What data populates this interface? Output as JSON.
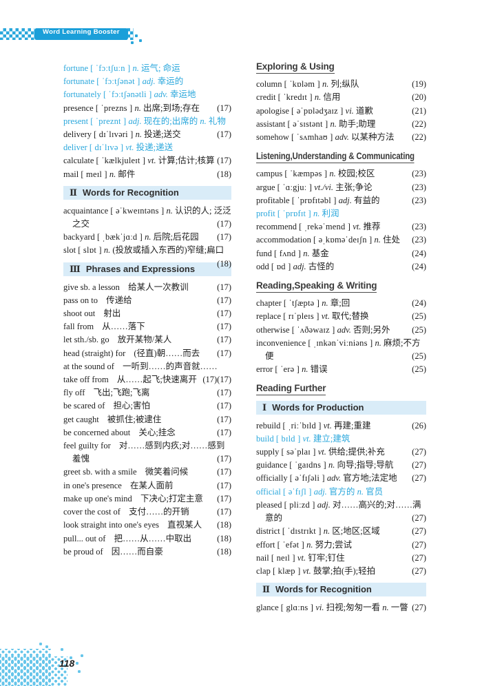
{
  "page": {
    "header_badge": "Word Learning Booster",
    "page_number": "118"
  },
  "colors": {
    "accent_blue": "#2aa7dc",
    "badge_blue": "#1b9fd9",
    "section_bar_bg": "#d9ecf8",
    "text_dark": "#1e1e1e"
  },
  "left_column": [
    {
      "kind": "entry",
      "blue": true,
      "head": "fortune",
      "phon": "ˈfɔːtʃuːn",
      "body": [
        {
          "pos": "n.",
          "zh": "运气; 命运"
        }
      ]
    },
    {
      "kind": "entry",
      "blue": true,
      "head": "fortunate",
      "phon": "ˈfɔːtʃənət",
      "body": [
        {
          "pos": "adj.",
          "zh": "幸运的"
        }
      ]
    },
    {
      "kind": "entry",
      "blue": true,
      "head": "fortunately",
      "phon": "ˈfɔːtʃənətli",
      "body": [
        {
          "pos": "adv.",
          "zh": "幸运地"
        }
      ]
    },
    {
      "kind": "entry",
      "head": "presence",
      "phon": "ˈprezns",
      "body": [
        {
          "pos": "n.",
          "zh": "出席;到场;存在"
        }
      ],
      "page": "(17)"
    },
    {
      "kind": "entry",
      "blue": true,
      "head": "present",
      "phon": "ˈpreznt",
      "body": [
        {
          "pos": "adj.",
          "zh": "现在的;出席的"
        },
        {
          "pos": "n.",
          "zh": "礼物"
        }
      ]
    },
    {
      "kind": "entry",
      "head": "delivery",
      "phon": "dɪˈlɪvəri",
      "body": [
        {
          "pos": "n.",
          "zh": "投递;送交"
        }
      ],
      "page": "(17)"
    },
    {
      "kind": "entry",
      "blue": true,
      "head": "deliver",
      "phon": "dɪˈlɪvə",
      "body": [
        {
          "pos": "vt.",
          "zh": "投递;递送"
        }
      ]
    },
    {
      "kind": "entry",
      "head": "calculate",
      "phon": "ˈkælkjuleɪt",
      "body": [
        {
          "pos": "vt.",
          "zh": "计算;估计;核算"
        }
      ],
      "page": "(17)"
    },
    {
      "kind": "entry",
      "head": "mail",
      "phon": "meɪl",
      "body": [
        {
          "pos": "n.",
          "zh": "邮件"
        }
      ],
      "page": "(18)"
    },
    {
      "kind": "bar",
      "num": "Ⅱ",
      "label": "Words for Recognition"
    },
    {
      "kind": "entry",
      "head": "acquaintance",
      "phon": "əˈkweɪntəns",
      "body": [
        {
          "pos": "n.",
          "zh": "认识的人; 泛泛之交"
        }
      ],
      "page": "(17)"
    },
    {
      "kind": "entry",
      "head": "backyard",
      "phon": "ˌbækˈjɑːd",
      "body": [
        {
          "pos": "n.",
          "zh": "后院;后花园"
        }
      ],
      "page": "(17)"
    },
    {
      "kind": "entry",
      "head": "slot",
      "phon": "slɒt",
      "body": [
        {
          "pos": "n.",
          "zh": "(投放或插入东西的)窄缝;扁口"
        }
      ],
      "page": "(18)"
    },
    {
      "kind": "bar",
      "num": "Ⅲ",
      "label": "Phrases and Expressions"
    },
    {
      "kind": "entry",
      "head": "give sb. a lesson",
      "body": [
        {
          "zh": "给某人一次教训"
        }
      ],
      "page": "(17)"
    },
    {
      "kind": "entry",
      "head": "pass on to",
      "body": [
        {
          "zh": "传递给"
        }
      ],
      "page": "(17)"
    },
    {
      "kind": "entry",
      "head": "shoot out",
      "body": [
        {
          "zh": "射出"
        }
      ],
      "page": "(17)"
    },
    {
      "kind": "entry",
      "head": "fall from",
      "body": [
        {
          "zh": "从……落下"
        }
      ],
      "page": "(17)"
    },
    {
      "kind": "entry",
      "head": "let sth./sb. go",
      "body": [
        {
          "zh": "放开某物/某人"
        }
      ],
      "page": "(17)"
    },
    {
      "kind": "entry",
      "head": "head (straight) for",
      "body": [
        {
          "zh": "(径直)朝……而去"
        }
      ],
      "page": "(17)"
    },
    {
      "kind": "entry",
      "head": "at the sound of",
      "body": [
        {
          "zh": "一听到……的声音就……"
        }
      ],
      "page": "(17)"
    },
    {
      "kind": "entry",
      "head": "take off from",
      "body": [
        {
          "zh": "从……起飞;快速离开"
        }
      ],
      "page": "(17)"
    },
    {
      "kind": "entry",
      "head": "fly off",
      "body": [
        {
          "zh": "飞出;飞跑;飞离"
        }
      ],
      "page": "(17)"
    },
    {
      "kind": "entry",
      "head": "be scared of",
      "body": [
        {
          "zh": "担心;害怕"
        }
      ],
      "page": "(17)"
    },
    {
      "kind": "entry",
      "head": "get caught",
      "body": [
        {
          "zh": "被抓住;被逮住"
        }
      ],
      "page": "(17)"
    },
    {
      "kind": "entry",
      "head": "be concerned about",
      "body": [
        {
          "zh": "关心;挂念"
        }
      ],
      "page": "(17)"
    },
    {
      "kind": "entry",
      "head": "feel guilty for",
      "body": [
        {
          "zh": "对……感到内疚;对……感到羞愧"
        }
      ],
      "page": "(17)"
    },
    {
      "kind": "entry",
      "head": "greet sb. with a smile",
      "body": [
        {
          "zh": "微笑着问候"
        }
      ],
      "page": "(17)"
    },
    {
      "kind": "entry",
      "head": "in one's presence",
      "body": [
        {
          "zh": "在某人面前"
        }
      ],
      "page": "(17)"
    },
    {
      "kind": "entry",
      "head": "make up one's mind",
      "body": [
        {
          "zh": "下决心;打定主意"
        }
      ],
      "page": "(17)"
    },
    {
      "kind": "entry",
      "head": "cover the cost of",
      "body": [
        {
          "zh": "支付……的开销"
        }
      ],
      "page": "(17)"
    },
    {
      "kind": "entry",
      "head": "look straight into one's eyes",
      "body": [
        {
          "zh": "直视某人"
        }
      ],
      "page": "(18)"
    },
    {
      "kind": "entry",
      "head": "pull... out of",
      "body": [
        {
          "zh": "把……从……中取出"
        }
      ],
      "page": "(18)"
    },
    {
      "kind": "entry",
      "head": "be proud of",
      "body": [
        {
          "zh": "因……而自豪"
        }
      ],
      "page": "(18)"
    }
  ],
  "right_column": [
    {
      "kind": "rule",
      "label": "Exploring & Using"
    },
    {
      "kind": "entry",
      "head": "column",
      "phon": "ˈkɒləm",
      "body": [
        {
          "pos": "n.",
          "zh": "列;纵队"
        }
      ],
      "page": "(19)"
    },
    {
      "kind": "entry",
      "head": "credit",
      "phon": "ˈkredɪt",
      "body": [
        {
          "pos": "n.",
          "zh": "信用"
        }
      ],
      "page": "(20)"
    },
    {
      "kind": "entry",
      "head": "apologise",
      "phon": "əˈpɒlədʒaɪz",
      "body": [
        {
          "pos": "vi.",
          "zh": "道歉"
        }
      ],
      "page": "(21)"
    },
    {
      "kind": "entry",
      "head": "assistant",
      "phon": "əˈsɪstənt",
      "body": [
        {
          "pos": "n.",
          "zh": "助手;助理"
        }
      ],
      "page": "(22)"
    },
    {
      "kind": "entry",
      "head": "somehow",
      "phon": "ˈsʌmhaʊ",
      "body": [
        {
          "pos": "adv.",
          "zh": "以某种方法"
        }
      ],
      "page": "(22)"
    },
    {
      "kind": "rule",
      "label": "Listening,Understanding & Communicating"
    },
    {
      "kind": "entry",
      "head": "campus",
      "phon": "ˈkæmpəs",
      "body": [
        {
          "pos": "n.",
          "zh": "校园;校区"
        }
      ],
      "page": "(23)"
    },
    {
      "kind": "entry",
      "head": "argue",
      "phon": "ˈɑːgjuː",
      "body": [
        {
          "pos": "vt./vi.",
          "zh": "主张;争论"
        }
      ],
      "page": "(23)"
    },
    {
      "kind": "entry",
      "head": "profitable",
      "phon": "ˈprɒfɪtəbl",
      "body": [
        {
          "pos": "adj.",
          "zh": "有益的"
        }
      ],
      "page": "(23)"
    },
    {
      "kind": "entry",
      "blue": true,
      "head": "profit",
      "phon": "ˈprɒfɪt",
      "body": [
        {
          "pos": "n.",
          "zh": "利润"
        }
      ]
    },
    {
      "kind": "entry",
      "head": "recommend",
      "phon": "ˌrekəˈmend",
      "body": [
        {
          "pos": "vt.",
          "zh": "推荐"
        }
      ],
      "page": "(23)"
    },
    {
      "kind": "entry",
      "head": "accommodation",
      "phon": "əˌkɒməˈdeɪʃn",
      "body": [
        {
          "pos": "n.",
          "zh": "住处"
        }
      ],
      "page": "(23)"
    },
    {
      "kind": "entry",
      "head": "fund",
      "phon": "fʌnd",
      "body": [
        {
          "pos": "n.",
          "zh": "基金"
        }
      ],
      "page": "(24)"
    },
    {
      "kind": "entry",
      "head": "odd",
      "phon": "ɒd",
      "body": [
        {
          "pos": "adj.",
          "zh": "古怪的"
        }
      ],
      "page": "(24)"
    },
    {
      "kind": "rule",
      "label": "Reading,Speaking & Writing"
    },
    {
      "kind": "entry",
      "head": "chapter",
      "phon": "ˈtʃæptə",
      "body": [
        {
          "pos": "n.",
          "zh": "章;回"
        }
      ],
      "page": "(24)"
    },
    {
      "kind": "entry",
      "head": "replace",
      "phon": "rɪˈpleɪs",
      "body": [
        {
          "pos": "vt.",
          "zh": "取代;替换"
        }
      ],
      "page": "(25)"
    },
    {
      "kind": "entry",
      "head": "otherwise",
      "phon": "ˈʌðəwaɪz",
      "body": [
        {
          "pos": "adv.",
          "zh": "否则;另外"
        }
      ],
      "page": "(25)"
    },
    {
      "kind": "entry",
      "head": "inconvenience",
      "phon": "ˌɪnkənˈviːniəns",
      "body": [
        {
          "pos": "n.",
          "zh": "麻烦;不方便"
        }
      ],
      "page": "(25)"
    },
    {
      "kind": "entry",
      "head": "error",
      "phon": "ˈerə",
      "body": [
        {
          "pos": "n.",
          "zh": "错误"
        }
      ],
      "page": "(25)"
    },
    {
      "kind": "rule",
      "label": "Reading Further"
    },
    {
      "kind": "bar",
      "num": "Ⅰ",
      "label": "Words for Production"
    },
    {
      "kind": "entry",
      "head": "rebuild",
      "phon": "ˌriːˈbɪld",
      "body": [
        {
          "pos": "vt.",
          "zh": "再建;重建"
        }
      ],
      "page": "(26)"
    },
    {
      "kind": "entry",
      "blue": true,
      "head": "build",
      "phon": "bɪld",
      "body": [
        {
          "pos": "vt.",
          "zh": "建立;建筑"
        }
      ]
    },
    {
      "kind": "entry",
      "head": "supply",
      "phon": "səˈplaɪ",
      "body": [
        {
          "pos": "vt.",
          "zh": "供给;提供;补充"
        }
      ],
      "page": "(27)"
    },
    {
      "kind": "entry",
      "head": "guidance",
      "phon": "ˈgaɪdns",
      "body": [
        {
          "pos": "n.",
          "zh": "向导;指导;导航"
        }
      ],
      "page": "(27)"
    },
    {
      "kind": "entry",
      "head": "officially",
      "phon": "əˈfɪʃəli",
      "body": [
        {
          "pos": "adv.",
          "zh": "官方地;法定地"
        }
      ],
      "page": "(27)"
    },
    {
      "kind": "entry",
      "blue": true,
      "head": "official",
      "phon": "əˈfɪʃl",
      "body": [
        {
          "pos": "adj.",
          "zh": "官方的"
        },
        {
          "pos": "n.",
          "zh": "官员"
        }
      ]
    },
    {
      "kind": "entry",
      "head": "pleased",
      "phon": "pliːzd",
      "body": [
        {
          "pos": "adj.",
          "zh": "对……高兴的;对……满意的"
        }
      ],
      "page": "(27)"
    },
    {
      "kind": "entry",
      "head": "district",
      "phon": "ˈdɪstrɪkt",
      "body": [
        {
          "pos": "n.",
          "zh": "区;地区;区域"
        }
      ],
      "page": "(27)"
    },
    {
      "kind": "entry",
      "head": "effort",
      "phon": "ˈefət",
      "body": [
        {
          "pos": "n.",
          "zh": "努力;尝试"
        }
      ],
      "page": "(27)"
    },
    {
      "kind": "entry",
      "head": "nail",
      "phon": "neɪl",
      "body": [
        {
          "pos": "vt.",
          "zh": "钉牢;钉住"
        }
      ],
      "page": "(27)"
    },
    {
      "kind": "entry",
      "head": "clap",
      "phon": "klæp",
      "body": [
        {
          "pos": "vt.",
          "zh": "鼓掌;拍(手);轻拍"
        }
      ],
      "page": "(27)"
    },
    {
      "kind": "bar",
      "num": "Ⅱ",
      "label": "Words for Recognition"
    },
    {
      "kind": "entry",
      "head": "glance",
      "phon": "glɑːns",
      "body": [
        {
          "pos": "vi.",
          "zh": "扫视;匆匆一看"
        },
        {
          "pos": "n.",
          "zh": "一瞥"
        }
      ],
      "page": "(27)"
    }
  ]
}
